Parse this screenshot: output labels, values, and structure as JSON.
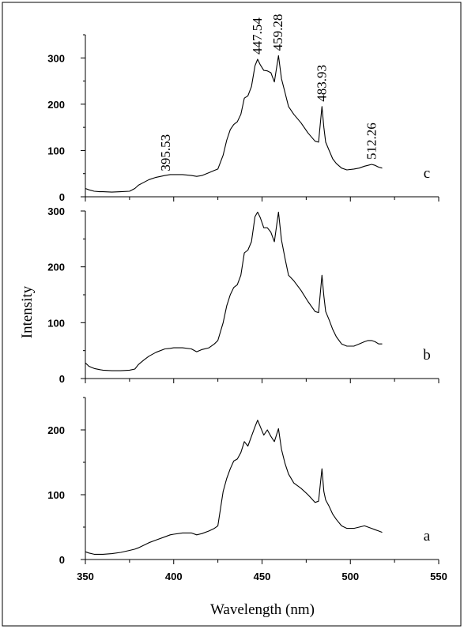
{
  "chart_data": {
    "type": "line",
    "xlabel": "Wavelength (nm)",
    "ylabel": "Intensity",
    "xlim": [
      350,
      550
    ],
    "x_ticks": [
      "350",
      "400",
      "450",
      "500",
      "550"
    ],
    "grid": false,
    "panels": [
      {
        "label": "c",
        "ylim": [
          0,
          350
        ],
        "y_ticks": [
          "0",
          "100",
          "200",
          "300"
        ],
        "peak_labels": [
          {
            "text": "395.53",
            "x": 395.53,
            "y": 45
          },
          {
            "text": "447.54",
            "x": 447.54,
            "y": 297
          },
          {
            "text": "459.28",
            "x": 459.28,
            "y": 305
          },
          {
            "text": "483.93",
            "x": 483.93,
            "y": 195
          },
          {
            "text": "512.26",
            "x": 512.26,
            "y": 70
          }
        ],
        "series": [
          {
            "x": [
              350,
              352,
              355,
              358,
              360,
              365,
              370,
              375,
              378,
              380,
              383,
              386,
              390,
              395,
              398,
              400,
              405,
              410,
              413,
              416,
              420,
              423,
              425,
              428,
              430,
              432,
              434,
              436,
              438,
              440,
              442,
              444,
              446,
              447.5,
              449,
              451,
              453,
              455,
              457,
              459.3,
              461,
              463,
              465,
              468,
              472,
              476,
              480,
              482,
              483.9,
              485,
              486,
              488,
              490,
              492,
              495,
              498,
              502,
              505,
              508,
              510,
              512,
              514,
              516,
              518
            ],
            "y": [
              18,
              15,
              12,
              11,
              11,
              10,
              11,
              12,
              18,
              25,
              31,
              37,
              42,
              46,
              48,
              48,
              48,
              46,
              44,
              46,
              52,
              57,
              60,
              90,
              122,
              145,
              156,
              162,
              178,
              213,
              218,
              238,
              283,
              297,
              285,
              273,
              272,
              268,
              248,
              305,
              255,
              225,
              195,
              178,
              160,
              138,
              120,
              118,
              195,
              150,
              118,
              100,
              82,
              72,
              62,
              58,
              60,
              62,
              66,
              68,
              70,
              68,
              64,
              62
            ]
          }
        ]
      },
      {
        "label": "b",
        "ylim": [
          0,
          300
        ],
        "y_ticks": [
          "0",
          "100",
          "200",
          "300"
        ],
        "series": [
          {
            "x": [
              350,
              352,
              355,
              358,
              360,
              365,
              370,
              375,
              378,
              380,
              383,
              386,
              390,
              395,
              398,
              400,
              405,
              410,
              413,
              416,
              420,
              423,
              425,
              428,
              430,
              432,
              434,
              436,
              438,
              440,
              442,
              444,
              446,
              447.5,
              449,
              451,
              453,
              455,
              457,
              459.3,
              461,
              463,
              465,
              468,
              472,
              476,
              480,
              482,
              483.9,
              485,
              486,
              488,
              490,
              492,
              495,
              498,
              502,
              505,
              508,
              510,
              512,
              514,
              516,
              518
            ],
            "y": [
              28,
              22,
              18,
              16,
              15,
              14,
              14,
              15,
              17,
              25,
              33,
              40,
              47,
              53,
              54,
              55,
              55,
              53,
              48,
              52,
              55,
              62,
              68,
              100,
              130,
              150,
              163,
              168,
              185,
              225,
              230,
              245,
              290,
              298,
              288,
              270,
              270,
              262,
              245,
              298,
              248,
              215,
              185,
              175,
              158,
              138,
              120,
              118,
              185,
              148,
              120,
              105,
              88,
              75,
              62,
              58,
              58,
              62,
              66,
              68,
              68,
              66,
              62,
              62
            ]
          }
        ]
      },
      {
        "label": "a",
        "ylim": [
          0,
          250
        ],
        "y_ticks": [
          "0",
          "100",
          "200"
        ],
        "series": [
          {
            "x": [
              350,
              352,
              355,
              358,
              360,
              365,
              370,
              375,
              378,
              380,
              383,
              386,
              390,
              395,
              398,
              400,
              405,
              410,
              413,
              416,
              420,
              423,
              425,
              428,
              430,
              432,
              434,
              436,
              438,
              440,
              442,
              444,
              446,
              447.5,
              449,
              451,
              453,
              455,
              457,
              459.3,
              461,
              463,
              465,
              468,
              472,
              476,
              480,
              482,
              483.9,
              485,
              486,
              488,
              490,
              492,
              495,
              498,
              502,
              505,
              508,
              510,
              512,
              514,
              516,
              518
            ],
            "y": [
              12,
              10,
              8,
              8,
              8,
              9,
              11,
              14,
              16,
              18,
              22,
              26,
              30,
              35,
              38,
              39,
              41,
              41,
              38,
              40,
              44,
              48,
              52,
              105,
              125,
              140,
              152,
              155,
              165,
              182,
              175,
              190,
              205,
              215,
              205,
              192,
              200,
              190,
              182,
              202,
              170,
              148,
              132,
              118,
              110,
              100,
              88,
              90,
              140,
              105,
              92,
              82,
              70,
              62,
              52,
              48,
              48,
              50,
              52,
              50,
              48,
              46,
              44,
              42
            ]
          }
        ]
      }
    ]
  }
}
